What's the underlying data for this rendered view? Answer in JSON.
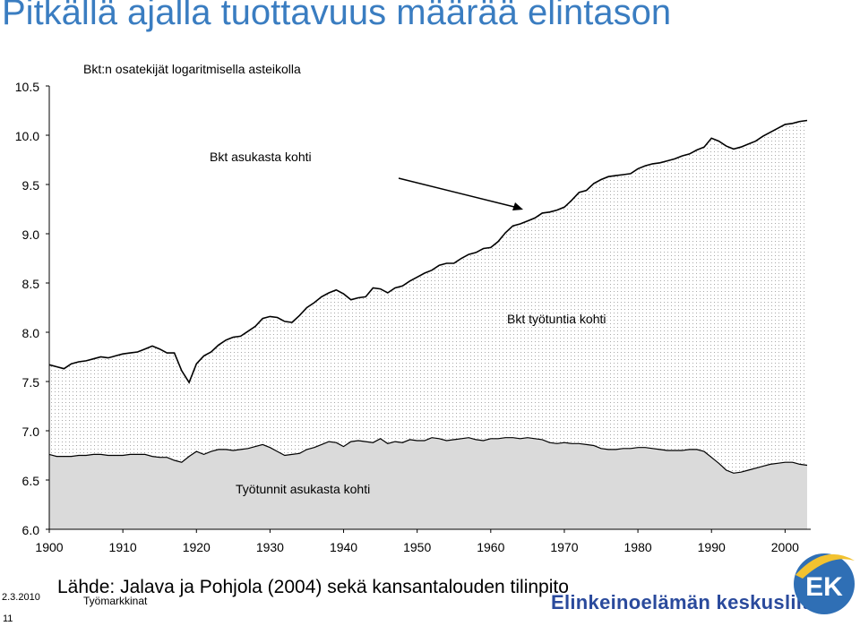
{
  "page": {
    "title": "Pitkällä ajalla tuottavuus määrää elintason",
    "footer_date": "2.3.2010",
    "footer_page": "11",
    "footer_source": "Lähde: Jalava ja Pohjola (2004) sekä kansantalouden tilinpito",
    "footer_category": "Työmarkkinat",
    "brand_name": "Elinkeinoelämän keskusliitto",
    "logo_text": "EK"
  },
  "colors": {
    "title": "#3a7dc1",
    "brand": "#2a4a9c",
    "logo_bg": "#2f6fb5",
    "logo_swoosh": "#f2c230"
  },
  "chart_data": {
    "type": "area",
    "title": "Bkt:n osatekijät logaritmisella asteikolla",
    "xlabel": "",
    "ylabel": "",
    "xlim": [
      1900,
      2003
    ],
    "ylim": [
      6.0,
      10.5
    ],
    "xticks": [
      "1900",
      "1910",
      "1920",
      "1930",
      "1940",
      "1950",
      "1960",
      "1970",
      "1980",
      "1990",
      "2000"
    ],
    "yticks": [
      "6.0",
      "6.5",
      "7.0",
      "7.5",
      "8.0",
      "8.5",
      "9.0",
      "9.5",
      "10.0",
      "10.5"
    ],
    "grid": false,
    "annotations": [
      {
        "text": "Bkt asukasta kohti",
        "series": "Bkt asukasta kohti"
      },
      {
        "text": "Bkt työtuntia kohti",
        "series": "Bkt työtuntia kohti"
      },
      {
        "text": "Työtunnit asukasta kohti",
        "series": "Työtunnit asukasta kohti"
      }
    ],
    "x": [
      1900,
      1901,
      1902,
      1903,
      1904,
      1905,
      1906,
      1907,
      1908,
      1909,
      1910,
      1911,
      1912,
      1913,
      1914,
      1915,
      1916,
      1917,
      1918,
      1919,
      1920,
      1921,
      1922,
      1923,
      1924,
      1925,
      1926,
      1927,
      1928,
      1929,
      1930,
      1931,
      1932,
      1933,
      1934,
      1935,
      1936,
      1937,
      1938,
      1939,
      1940,
      1941,
      1942,
      1943,
      1944,
      1945,
      1946,
      1947,
      1948,
      1949,
      1950,
      1951,
      1952,
      1953,
      1954,
      1955,
      1956,
      1957,
      1958,
      1959,
      1960,
      1961,
      1962,
      1963,
      1964,
      1965,
      1966,
      1967,
      1968,
      1969,
      1970,
      1971,
      1972,
      1973,
      1974,
      1975,
      1976,
      1977,
      1978,
      1979,
      1980,
      1981,
      1982,
      1983,
      1984,
      1985,
      1986,
      1987,
      1988,
      1989,
      1990,
      1991,
      1992,
      1993,
      1994,
      1995,
      1996,
      1997,
      1998,
      1999,
      2000,
      2001,
      2002,
      2003
    ],
    "series": [
      {
        "name": "Bkt asukasta kohti",
        "values": [
          7.67,
          7.65,
          7.63,
          7.68,
          7.7,
          7.71,
          7.73,
          7.75,
          7.74,
          7.76,
          7.78,
          7.79,
          7.8,
          7.83,
          7.86,
          7.83,
          7.79,
          7.79,
          7.61,
          7.49,
          7.68,
          7.76,
          7.8,
          7.87,
          7.92,
          7.95,
          7.96,
          8.01,
          8.06,
          8.14,
          8.16,
          8.15,
          8.11,
          8.1,
          8.17,
          8.25,
          8.3,
          8.36,
          8.4,
          8.43,
          8.39,
          8.33,
          8.35,
          8.36,
          8.45,
          8.44,
          8.4,
          8.45,
          8.47,
          8.52,
          8.56,
          8.6,
          8.63,
          8.68,
          8.7,
          8.7,
          8.75,
          8.79,
          8.81,
          8.85,
          8.86,
          8.92,
          9.01,
          9.08,
          9.1,
          9.13,
          9.16,
          9.21,
          9.22,
          9.24,
          9.27,
          9.34,
          9.42,
          9.44,
          9.51,
          9.55,
          9.58,
          9.59,
          9.6,
          9.61,
          9.66,
          9.69,
          9.71,
          9.72,
          9.74,
          9.76,
          9.79,
          9.81,
          9.85,
          9.88,
          9.97,
          9.94,
          9.89,
          9.86,
          9.88,
          9.91,
          9.94,
          9.99,
          10.03,
          10.07,
          10.11,
          10.12,
          10.14,
          10.15
        ]
      },
      {
        "name": "Työtunnit asukasta kohti",
        "values": [
          6.76,
          6.74,
          6.74,
          6.74,
          6.75,
          6.75,
          6.76,
          6.76,
          6.75,
          6.75,
          6.75,
          6.76,
          6.76,
          6.76,
          6.74,
          6.73,
          6.73,
          6.7,
          6.68,
          6.74,
          6.79,
          6.76,
          6.79,
          6.81,
          6.81,
          6.8,
          6.81,
          6.82,
          6.84,
          6.86,
          6.83,
          6.79,
          6.75,
          6.76,
          6.77,
          6.81,
          6.83,
          6.86,
          6.89,
          6.88,
          6.84,
          6.89,
          6.9,
          6.89,
          6.88,
          6.92,
          6.87,
          6.89,
          6.88,
          6.91,
          6.9,
          6.9,
          6.93,
          6.92,
          6.9,
          6.91,
          6.92,
          6.93,
          6.91,
          6.9,
          6.92,
          6.92,
          6.93,
          6.93,
          6.92,
          6.93,
          6.92,
          6.91,
          6.88,
          6.87,
          6.88,
          6.87,
          6.87,
          6.86,
          6.85,
          6.82,
          6.81,
          6.81,
          6.82,
          6.82,
          6.83,
          6.83,
          6.82,
          6.81,
          6.8,
          6.8,
          6.8,
          6.81,
          6.81,
          6.79,
          6.73,
          6.67,
          6.6,
          6.57,
          6.58,
          6.6,
          6.62,
          6.64,
          6.66,
          6.67,
          6.68,
          6.68,
          6.66,
          6.65
        ]
      }
    ],
    "areas": [
      {
        "name": "Bkt työtuntia kohti",
        "between": [
          "Bkt asukasta kohti",
          "Työtunnit asukasta kohti"
        ],
        "fill": "dotted"
      },
      {
        "name": "Työtunnit asukasta kohti",
        "between": [
          "Työtunnit asukasta kohti",
          "baseline"
        ],
        "fill": "#dadada"
      }
    ]
  }
}
